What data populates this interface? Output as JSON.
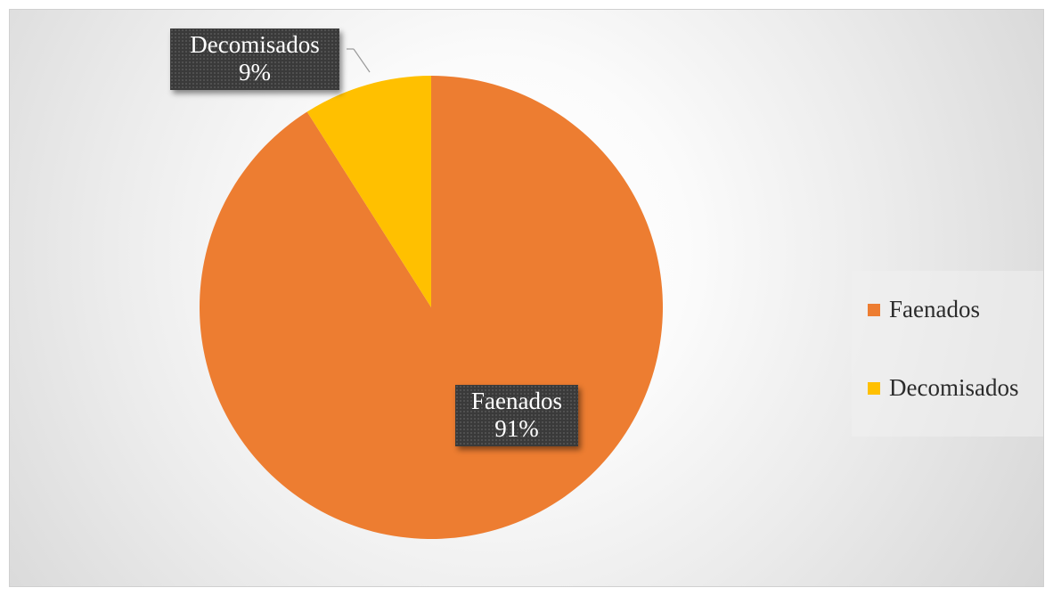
{
  "chart_data": {
    "type": "pie",
    "title": "",
    "categories": [
      "Faenados",
      "Decomisados"
    ],
    "values": [
      91,
      9
    ],
    "unit": "%",
    "colors": [
      "#ED7D31",
      "#FFC000"
    ],
    "legend": "right",
    "slices": [
      {
        "name": "Faenados",
        "value": 91,
        "label": "91%",
        "color": "#ED7D31"
      },
      {
        "name": "Decomisados",
        "value": 9,
        "label": "9%",
        "color": "#FFC000"
      }
    ]
  }
}
